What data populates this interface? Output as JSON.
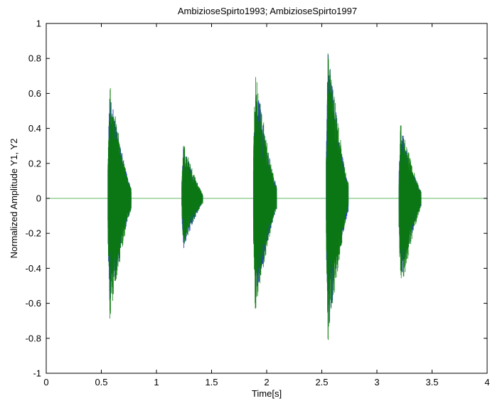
{
  "chart_data": {
    "type": "line",
    "title": "AmbizioseSpirto1993;  AmbizioseSpirto1997",
    "xlabel": "Time[s]",
    "ylabel": "Normalized Amplitude Y1, Y2",
    "xlim": [
      0,
      4
    ],
    "ylim": [
      -1,
      1
    ],
    "xticks": [
      0,
      0.5,
      1,
      1.5,
      2,
      2.5,
      3,
      3.5,
      4
    ],
    "xtick_labels": [
      "0",
      "0.5",
      "1",
      "1.5",
      "2",
      "2.5",
      "3",
      "3.5",
      "4"
    ],
    "yticks": [
      1,
      0.8,
      0.6,
      0.4,
      0.2,
      0,
      -0.2,
      -0.4,
      -0.6,
      -0.8,
      -1
    ],
    "ytick_labels": [
      "1",
      "0.8",
      "0.6",
      "0.4",
      "0.2",
      "0",
      "-0.2",
      "-0.4",
      "-0.6",
      "-0.8",
      "-1"
    ],
    "grid": false,
    "colors": {
      "series1": "#2b3bd8",
      "series2": "#0a7a0a",
      "baseline": "#7fc87f"
    },
    "series": [
      {
        "segments": [
          {
            "start": 0.56,
            "end": 0.77,
            "max": 0.64,
            "min": -0.66
          },
          {
            "start": 1.23,
            "end": 1.42,
            "max": 0.3,
            "min": -0.29
          },
          {
            "start": 1.88,
            "end": 2.09,
            "max": 0.72,
            "min": -0.63
          },
          {
            "start": 2.54,
            "end": 2.74,
            "max": 0.85,
            "min": -0.78
          },
          {
            "start": 3.2,
            "end": 3.4,
            "max": 0.42,
            "min": -0.48
          }
        ]
      },
      {
        "segments": [
          {
            "start": 0.56,
            "end": 0.77,
            "max": 0.65,
            "min": -0.73
          },
          {
            "start": 1.23,
            "end": 1.42,
            "max": 0.32,
            "min": -0.3
          },
          {
            "start": 1.88,
            "end": 2.09,
            "max": 0.75,
            "min": -0.67
          },
          {
            "start": 2.54,
            "end": 2.74,
            "max": 0.91,
            "min": -0.83
          },
          {
            "start": 3.2,
            "end": 3.4,
            "max": 0.45,
            "min": -0.56
          }
        ]
      }
    ]
  }
}
